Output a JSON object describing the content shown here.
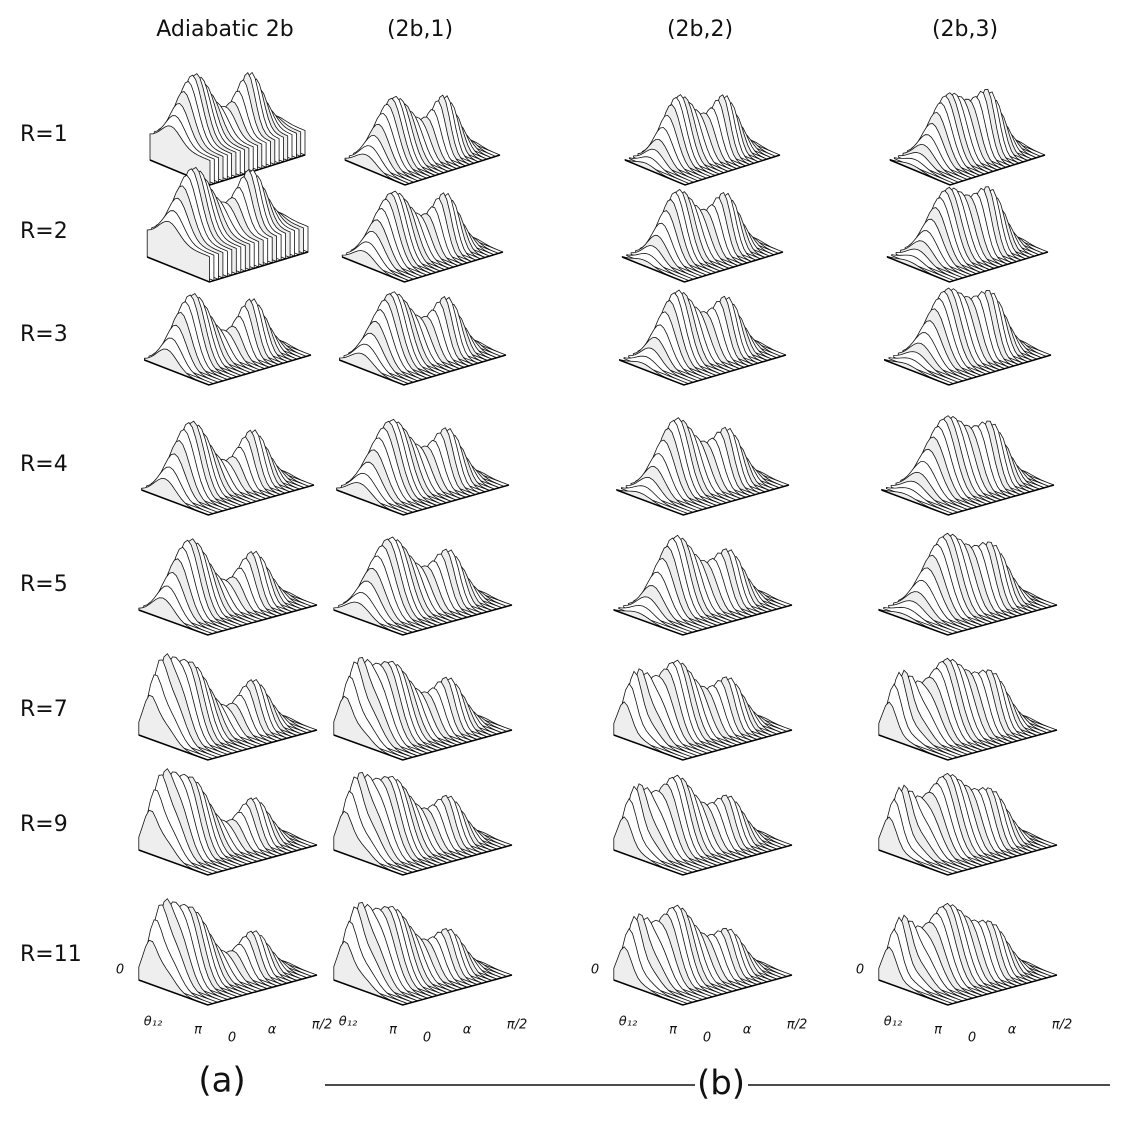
{
  "figure": {
    "columns": [
      "Adiabatic 2b",
      "(2b,1)",
      "(2b,2)",
      "(2b,3)"
    ],
    "rows": [
      "R=1",
      "R=2",
      "R=3",
      "R=4",
      "R=5",
      "R=7",
      "R=9",
      "R=11"
    ],
    "axes": [
      {
        "theta_start": "0",
        "theta": "θ₁₂",
        "theta_end": "π",
        "alpha_start": "0",
        "alpha": "α",
        "alpha_end": "π/2"
      },
      {
        "theta": "θ₁₂",
        "theta_end": "π",
        "alpha_start": "0",
        "alpha": "α",
        "alpha_end": "π/2"
      },
      {
        "theta_start": "0",
        "theta": "θ₁₂",
        "theta_end": "π",
        "alpha_start": "0",
        "alpha": "α",
        "alpha_end": "π/2"
      },
      {
        "theta_start": "0",
        "theta": "θ₁₂",
        "theta_end": "π",
        "alpha_start": "0",
        "alpha": "α",
        "alpha_end": "π/2"
      }
    ],
    "panel_a": "(a)",
    "panel_b": "(b)"
  }
}
